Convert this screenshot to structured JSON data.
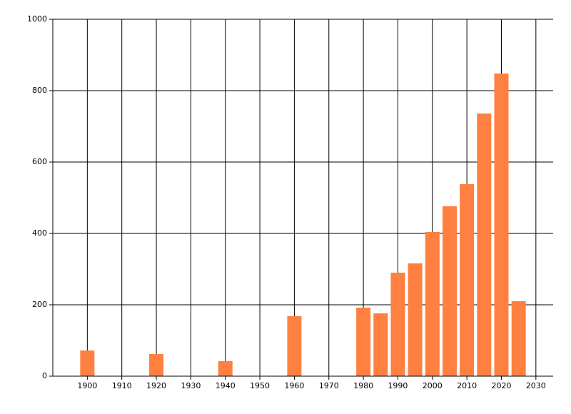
{
  "chart_data": {
    "type": "bar",
    "x": [
      1900,
      1920,
      1940,
      1960,
      1980,
      1985,
      1990,
      1995,
      2000,
      2005,
      2010,
      2015,
      2020,
      2025
    ],
    "values": [
      72,
      62,
      42,
      168,
      192,
      176,
      290,
      316,
      404,
      476,
      538,
      736,
      848,
      210
    ],
    "color": "#ff8040",
    "xlim": [
      1890,
      2035
    ],
    "xticks": [
      1900,
      1910,
      1920,
      1930,
      1940,
      1950,
      1960,
      1970,
      1980,
      1990,
      2000,
      2010,
      2020,
      2030
    ],
    "ylim": [
      0,
      1000
    ],
    "yticks": [
      0,
      200,
      400,
      600,
      800,
      1000
    ],
    "grid": true
  }
}
